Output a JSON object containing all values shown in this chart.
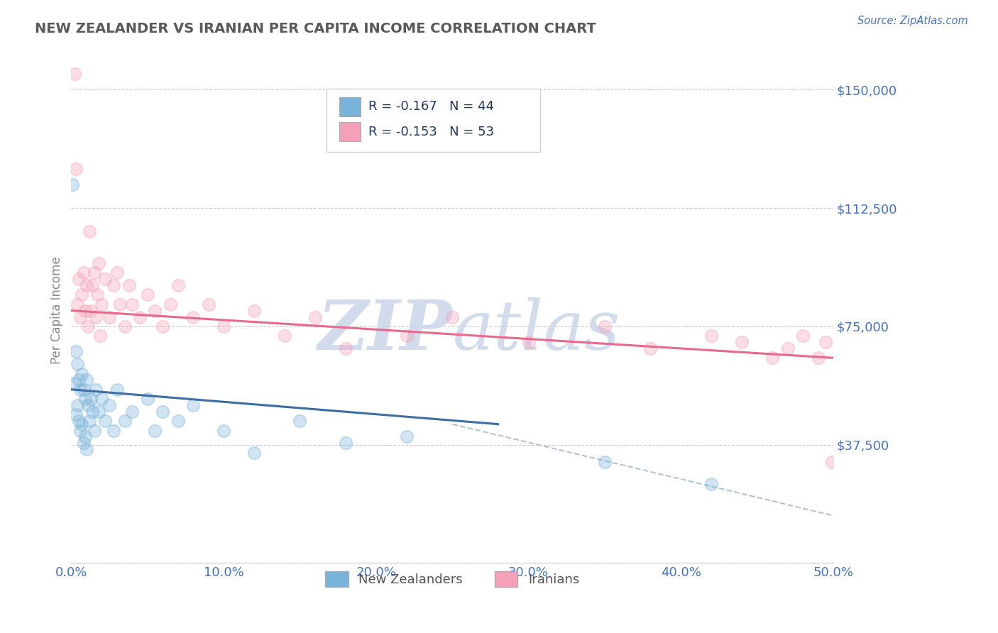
{
  "title": "NEW ZEALANDER VS IRANIAN PER CAPITA INCOME CORRELATION CHART",
  "source": "Source: ZipAtlas.com",
  "ylabel": "Per Capita Income",
  "xlim": [
    0.0,
    0.5
  ],
  "ylim": [
    0,
    160000
  ],
  "yticks": [
    0,
    37500,
    75000,
    112500,
    150000
  ],
  "xticks": [
    0.0,
    0.1,
    0.2,
    0.3,
    0.4,
    0.5
  ],
  "xtick_labels": [
    "0.0%",
    "10.0%",
    "20.0%",
    "30.0%",
    "40.0%",
    "50.0%"
  ],
  "nz_R": "-0.167",
  "nz_N": "44",
  "ir_R": "-0.153",
  "ir_N": "53",
  "blue_color": "#7ab3d9",
  "pink_color": "#f4a0b8",
  "blue_line_color": "#3c6ea5",
  "pink_line_color": "#e8698a",
  "dash_color": "#b0c4d8",
  "axis_tick_color": "#4472c4",
  "title_color": "#595959",
  "watermark_color": "#ccd8ea",
  "legend_text_color": "#1f3864",
  "source_color": "#4472c4",
  "nz_x": [
    0.001,
    0.002,
    0.003,
    0.003,
    0.004,
    0.004,
    0.005,
    0.005,
    0.006,
    0.006,
    0.007,
    0.007,
    0.008,
    0.008,
    0.009,
    0.009,
    0.01,
    0.01,
    0.011,
    0.012,
    0.013,
    0.014,
    0.015,
    0.016,
    0.018,
    0.02,
    0.022,
    0.025,
    0.028,
    0.03,
    0.035,
    0.04,
    0.05,
    0.055,
    0.06,
    0.07,
    0.08,
    0.1,
    0.12,
    0.15,
    0.18,
    0.22,
    0.35,
    0.42
  ],
  "nz_y": [
    120000,
    57000,
    67000,
    47000,
    63000,
    50000,
    58000,
    45000,
    55000,
    42000,
    60000,
    44000,
    55000,
    38000,
    52000,
    40000,
    58000,
    36000,
    50000,
    45000,
    52000,
    48000,
    42000,
    55000,
    48000,
    52000,
    45000,
    50000,
    42000,
    55000,
    45000,
    48000,
    52000,
    42000,
    48000,
    45000,
    50000,
    42000,
    35000,
    45000,
    38000,
    40000,
    32000,
    25000
  ],
  "ir_x": [
    0.002,
    0.003,
    0.004,
    0.005,
    0.006,
    0.007,
    0.008,
    0.009,
    0.01,
    0.011,
    0.012,
    0.013,
    0.014,
    0.015,
    0.016,
    0.017,
    0.018,
    0.019,
    0.02,
    0.022,
    0.025,
    0.028,
    0.03,
    0.032,
    0.035,
    0.038,
    0.04,
    0.045,
    0.05,
    0.055,
    0.06,
    0.065,
    0.07,
    0.08,
    0.09,
    0.1,
    0.12,
    0.14,
    0.16,
    0.18,
    0.22,
    0.25,
    0.3,
    0.35,
    0.38,
    0.42,
    0.44,
    0.46,
    0.47,
    0.48,
    0.49,
    0.495,
    0.499
  ],
  "ir_y": [
    155000,
    125000,
    82000,
    90000,
    78000,
    85000,
    92000,
    80000,
    88000,
    75000,
    105000,
    80000,
    88000,
    92000,
    78000,
    85000,
    95000,
    72000,
    82000,
    90000,
    78000,
    88000,
    92000,
    82000,
    75000,
    88000,
    82000,
    78000,
    85000,
    80000,
    75000,
    82000,
    88000,
    78000,
    82000,
    75000,
    80000,
    72000,
    78000,
    68000,
    72000,
    78000,
    70000,
    75000,
    68000,
    72000,
    70000,
    65000,
    68000,
    72000,
    65000,
    70000,
    32000
  ],
  "nz_line_x": [
    0.0,
    0.28
  ],
  "nz_line_y": [
    55000,
    44000
  ],
  "ir_line_x": [
    0.0,
    0.5
  ],
  "ir_line_y": [
    80000,
    65000
  ],
  "dash_line_x": [
    0.25,
    0.5
  ],
  "dash_line_y": [
    44000,
    15000
  ]
}
